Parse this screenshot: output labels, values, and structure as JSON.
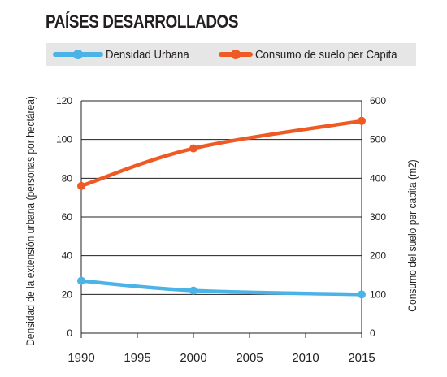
{
  "chart_data": {
    "type": "line",
    "title": "PAÍSES DESARROLLADOS",
    "x": [
      1990,
      2000,
      2015
    ],
    "xticks": [
      "1990",
      "1995",
      "2000",
      "2005",
      "2010",
      "2015"
    ],
    "xlim": [
      1990,
      2015
    ],
    "series": [
      {
        "name": "Densidad Urbana",
        "axis": "left",
        "color": "#4cb3e6",
        "values": [
          27,
          22,
          20
        ]
      },
      {
        "name": "Consumo de suelo per Capita",
        "axis": "right",
        "color": "#ef5a24",
        "values": [
          380,
          477,
          548
        ]
      }
    ],
    "ylabel_left": "Densidad de la extensión urbana (personas por hectárea)",
    "ylabel_right": "Consumo del suelo per capita (m2)",
    "ylim_left": [
      0,
      120
    ],
    "ylim_right": [
      0,
      600
    ],
    "yticks_left": [
      "0",
      "20",
      "40",
      "60",
      "80",
      "100",
      "120"
    ],
    "yticks_right": [
      "0",
      "100",
      "200",
      "300",
      "400",
      "500",
      "600"
    ],
    "grid": true,
    "legend_position": "top"
  }
}
